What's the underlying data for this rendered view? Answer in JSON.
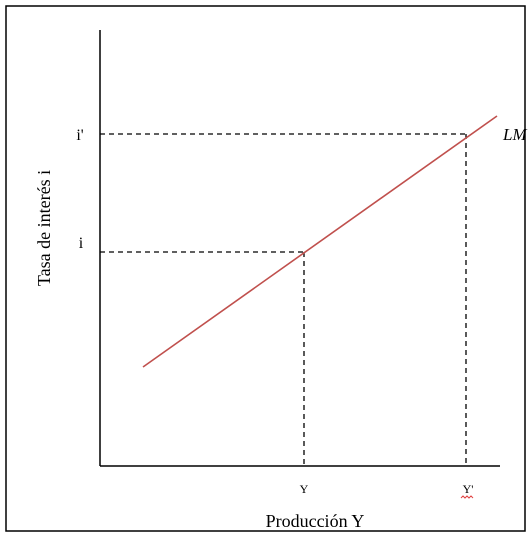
{
  "diagram": {
    "y_axis_label": "Tasa de interés i",
    "x_axis_label": "Producción Y",
    "curve_label": "LM",
    "y_ticks": [
      "i'",
      "i"
    ],
    "x_ticks": [
      "Y",
      "Y'"
    ],
    "colors": {
      "curve": "#c0504d",
      "axes": "#000000",
      "guides": "#000000",
      "border": "#000000",
      "squiggle": "#e04040"
    }
  }
}
